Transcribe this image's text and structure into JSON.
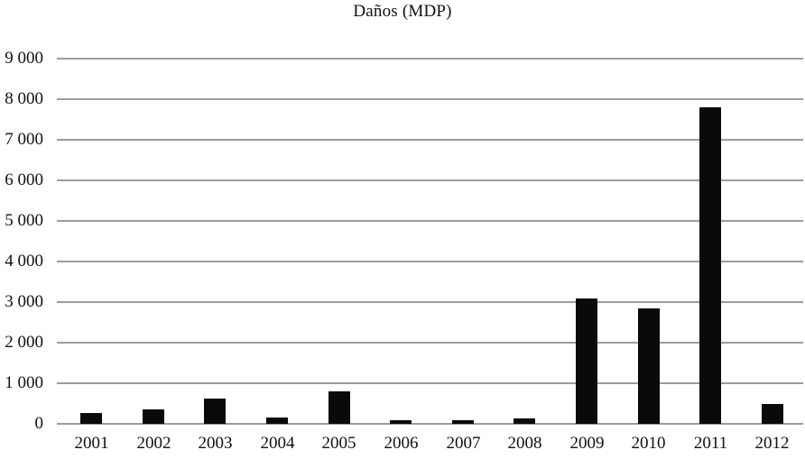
{
  "title": "Daños (MDP)",
  "chart_data": {
    "type": "bar",
    "title": "Daños (MDP)",
    "categories": [
      "2001",
      "2002",
      "2003",
      "2004",
      "2005",
      "2006",
      "2007",
      "2008",
      "2009",
      "2010",
      "2011",
      "2012"
    ],
    "values": [
      270,
      365,
      620,
      155,
      800,
      85,
      85,
      140,
      3090,
      2850,
      7790,
      495
    ],
    "xlabel": "",
    "ylabel": "",
    "ylim": [
      0,
      9000
    ],
    "ytick_interval": 1000,
    "ytick_labels": [
      "0",
      "1 000",
      "2 000",
      "3 000",
      "4 000",
      "5 000",
      "6 000",
      "7 000",
      "8 000",
      "9 000"
    ],
    "grid": "horizontal gridlines on",
    "legend": "none",
    "bar_color": "#0a0a0a",
    "gridline_color": "#9c9c9c",
    "text_color": "#111111",
    "background_color": "#ffffff"
  }
}
